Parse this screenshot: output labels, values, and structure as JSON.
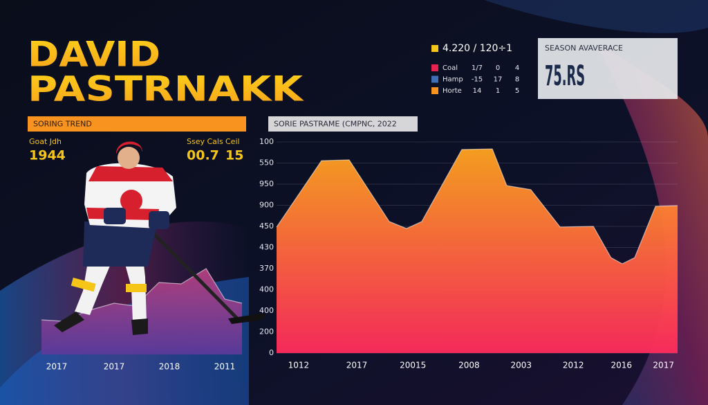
{
  "header": {
    "line1": "DAVID",
    "line2": "PASTRNAKK"
  },
  "trend_label": "SORING TREND",
  "stats": [
    {
      "label": "Goat Jdh",
      "value": "1944"
    },
    {
      "label": "Ssey Cals",
      "value": "00.7"
    },
    {
      "label": "Ceil",
      "value": "15"
    }
  ],
  "legend": {
    "headline": "4.220 / 120÷1",
    "rows": [
      {
        "name": "Coal",
        "color": "#e8224f",
        "cells": [
          "1/7",
          "0",
          "4"
        ]
      },
      {
        "name": "Hamp",
        "color": "#3f6fb6",
        "cells": [
          "-15",
          "17",
          "8"
        ]
      },
      {
        "name": "Horte",
        "color": "#f7931e",
        "cells": [
          "14",
          "1",
          "5"
        ]
      }
    ]
  },
  "season_box": {
    "label": "SEASON AVAVERACE",
    "value": "75.RS"
  },
  "chart_data": [
    {
      "type": "area",
      "x": [
        0,
        10.3,
        24.1,
        36.2,
        46.6,
        58.6,
        69.7,
        82.1,
        91.4,
        100
      ],
      "values": [
        50,
        48,
        64,
        74,
        70,
        104,
        102,
        124,
        80,
        74
      ],
      "xlim": [
        0,
        100
      ],
      "ylim": [
        0,
        150
      ],
      "xticks": [
        {
          "value": 7.6,
          "label": "2017"
        },
        {
          "value": 36.2,
          "label": "2017"
        },
        {
          "value": 63.8,
          "label": "2018"
        },
        {
          "value": 91.4,
          "label": "2011"
        }
      ],
      "colors": [
        "#b5407e",
        "#5a3a9a"
      ]
    },
    {
      "type": "area",
      "title": "SORIE PASTRAME (CMPNC, 2022",
      "x": [
        0,
        11.2,
        18.1,
        28.1,
        32.4,
        36.2,
        46.2,
        53.8,
        57.4,
        63.4,
        70.7,
        79,
        83.4,
        86.2,
        89.3,
        94.5,
        100
      ],
      "values": [
        597,
        911,
        915,
        623,
        590,
        623,
        964,
        967,
        793,
        774,
        597,
        600,
        452,
        423,
        452,
        695,
        698
      ],
      "xlim": [
        0,
        100
      ],
      "ylim": [
        0,
        1000
      ],
      "xticks": [
        {
          "value": 5.5,
          "label": "1012"
        },
        {
          "value": 20,
          "label": "2017"
        },
        {
          "value": 34,
          "label": "20015"
        },
        {
          "value": 48,
          "label": "2008"
        },
        {
          "value": 61,
          "label": "2003"
        },
        {
          "value": 74,
          "label": "2012"
        },
        {
          "value": 86,
          "label": "2016"
        },
        {
          "value": 96.5,
          "label": "2017"
        }
      ],
      "yticks": [
        {
          "value": 1000,
          "label": "100"
        },
        {
          "value": 900,
          "label": "550"
        },
        {
          "value": 800,
          "label": "950"
        },
        {
          "value": 700,
          "label": "900"
        },
        {
          "value": 600,
          "label": "450"
        },
        {
          "value": 500,
          "label": "430"
        },
        {
          "value": 400,
          "label": "370"
        },
        {
          "value": 300,
          "label": "400"
        },
        {
          "value": 200,
          "label": "400"
        },
        {
          "value": 100,
          "label": "200"
        },
        0
      ],
      "grid": true,
      "colors": [
        "#ffa41f",
        "#ff2b5c"
      ]
    }
  ]
}
